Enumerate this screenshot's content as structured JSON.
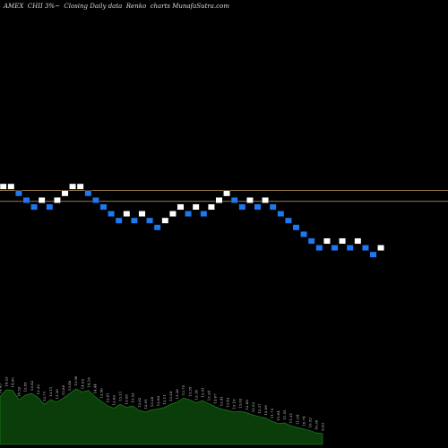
{
  "header": {
    "title": "AMEX  CHII 3%~  Closing Daily data  Renko  charts MunafaSutra.com"
  },
  "colors": {
    "background": "#000000",
    "up_brick": "#ffffff",
    "down_brick": "#1e78f0",
    "brick_border": "#000000",
    "reference_line": "#c8a060",
    "volume_fill": "#0a3d0a",
    "volume_line": "#1f8f1f"
  },
  "chart_data": {
    "type": "renko",
    "bricks": [
      {
        "dir": "up",
        "level": 0
      },
      {
        "dir": "up",
        "level": 0
      },
      {
        "dir": "down",
        "level": -1
      },
      {
        "dir": "down",
        "level": -2
      },
      {
        "dir": "down",
        "level": -3
      },
      {
        "dir": "up",
        "level": -2
      },
      {
        "dir": "down",
        "level": -3
      },
      {
        "dir": "up",
        "level": -2
      },
      {
        "dir": "up",
        "level": -1
      },
      {
        "dir": "up",
        "level": 0
      },
      {
        "dir": "up",
        "level": 0
      },
      {
        "dir": "down",
        "level": -1
      },
      {
        "dir": "down",
        "level": -2
      },
      {
        "dir": "down",
        "level": -3
      },
      {
        "dir": "down",
        "level": -4
      },
      {
        "dir": "down",
        "level": -5
      },
      {
        "dir": "up",
        "level": -4
      },
      {
        "dir": "down",
        "level": -5
      },
      {
        "dir": "up",
        "level": -4
      },
      {
        "dir": "down",
        "level": -5
      },
      {
        "dir": "down",
        "level": -6
      },
      {
        "dir": "up",
        "level": -5
      },
      {
        "dir": "up",
        "level": -4
      },
      {
        "dir": "up",
        "level": -3
      },
      {
        "dir": "down",
        "level": -4
      },
      {
        "dir": "up",
        "level": -3
      },
      {
        "dir": "down",
        "level": -4
      },
      {
        "dir": "up",
        "level": -3
      },
      {
        "dir": "up",
        "level": -2
      },
      {
        "dir": "up",
        "level": -1
      },
      {
        "dir": "down",
        "level": -2
      },
      {
        "dir": "down",
        "level": -3
      },
      {
        "dir": "up",
        "level": -2
      },
      {
        "dir": "down",
        "level": -3
      },
      {
        "dir": "up",
        "level": -2
      },
      {
        "dir": "down",
        "level": -3
      },
      {
        "dir": "down",
        "level": -4
      },
      {
        "dir": "down",
        "level": -5
      },
      {
        "dir": "down",
        "level": -6
      },
      {
        "dir": "down",
        "level": -7
      },
      {
        "dir": "down",
        "level": -8
      },
      {
        "dir": "down",
        "level": -9
      },
      {
        "dir": "up",
        "level": -8
      },
      {
        "dir": "down",
        "level": -9
      },
      {
        "dir": "up",
        "level": -8
      },
      {
        "dir": "down",
        "level": -9
      },
      {
        "dir": "up",
        "level": -8
      },
      {
        "dir": "down",
        "level": -9
      },
      {
        "dir": "down",
        "level": -10
      },
      {
        "dir": "up",
        "level": -9
      }
    ],
    "reference_levels": [
      0,
      -1.6
    ],
    "volume": {
      "values": [
        62,
        71,
        70,
        58,
        64,
        66,
        61,
        52,
        58,
        55,
        60,
        66,
        72,
        68,
        70,
        62,
        56,
        50,
        47,
        52,
        48,
        50,
        44,
        42,
        45,
        46,
        48,
        52,
        55,
        60,
        58,
        54,
        57,
        53,
        49,
        46,
        44,
        42,
        43,
        41,
        38,
        36,
        34,
        30,
        27,
        28,
        24,
        22,
        20,
        18,
        15,
        14
      ],
      "labels": [
        "14.43",
        "14.23",
        "14.00",
        "14.52",
        "13.85",
        "13.42",
        "13.32",
        "13.71",
        "13.11",
        "13.36",
        "12.86",
        "13.46",
        "13.96",
        "14.03",
        "14.18",
        "14.44",
        "13.90",
        "13.81",
        "13.69",
        "13.21",
        "13.08",
        "13.53",
        "12.62",
        "12.91",
        "13.28",
        "12.89",
        "13.11",
        "13.24",
        "13.38",
        "13.70",
        "13.35",
        "13.14",
        "12.91",
        "13.24",
        "13.67",
        "13.41",
        "13.43",
        "13.18",
        "13.02",
        "12.89",
        "12.52",
        "12.37",
        "12.09",
        "11.73",
        "11.64",
        "11.55",
        "11.31",
        "11.04",
        "10.74",
        "10.52",
        "10.36",
        "9.93"
      ],
      "max": 72
    }
  }
}
